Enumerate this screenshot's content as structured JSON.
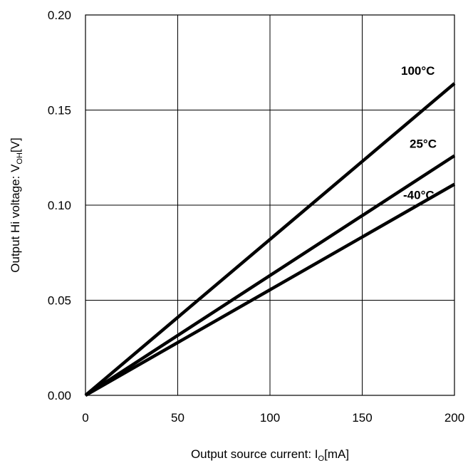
{
  "chart_data": {
    "type": "line",
    "title": "",
    "xlabel": {
      "main": "Output source current: I",
      "sub": "O",
      "tail": "[mA]"
    },
    "ylabel": {
      "main": "Output Hi voltage: V",
      "sub": "OH",
      "tail": "[V]"
    },
    "xlim": [
      0,
      200
    ],
    "ylim": [
      0,
      0.2
    ],
    "xticks": [
      0,
      50,
      100,
      150,
      200
    ],
    "yticks": [
      0,
      0.05,
      0.1,
      0.15,
      0.2
    ],
    "xtick_labels": [
      "0",
      "50",
      "100",
      "150",
      "200"
    ],
    "ytick_labels": [
      "0.00",
      "0.05",
      "0.10",
      "0.15",
      "0.20"
    ],
    "grid": true,
    "legend": "inline labels at right end of lines",
    "line_color": "#000000",
    "series": [
      {
        "name": "100°C",
        "x": [
          0,
          200
        ],
        "y": [
          0,
          0.164
        ]
      },
      {
        "name": "25°C",
        "x": [
          0,
          200
        ],
        "y": [
          0,
          0.126
        ]
      },
      {
        "name": "-40°C",
        "x": [
          0,
          200
        ],
        "y": [
          0,
          0.111
        ]
      }
    ]
  }
}
